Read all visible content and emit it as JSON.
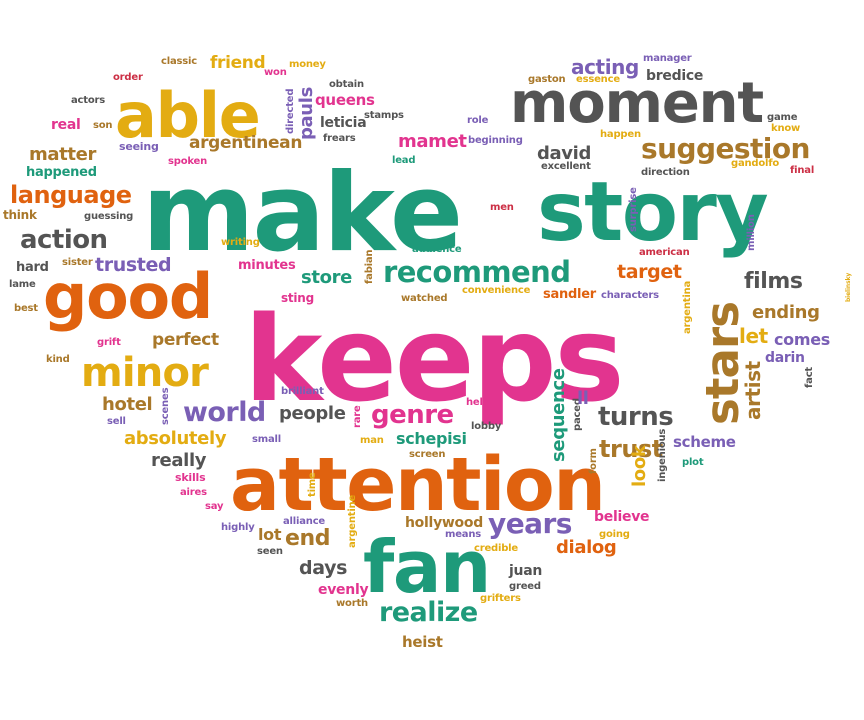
{
  "palette": {
    "green": "#1e9a7a",
    "pink": "#e2348f",
    "orange": "#e0620f",
    "gold": "#e3ac12",
    "purple": "#7a5fb5",
    "gray": "#545454",
    "brown": "#a9782a",
    "red": "#cc2f45"
  },
  "words": [
    {
      "text": "make",
      "color": "green"
    },
    {
      "text": "keeps",
      "color": "pink"
    },
    {
      "text": "story",
      "color": "green"
    },
    {
      "text": "attention",
      "color": "orange"
    },
    {
      "text": "moment",
      "color": "gray"
    },
    {
      "text": "able",
      "color": "gold"
    },
    {
      "text": "good",
      "color": "orange"
    },
    {
      "text": "stars",
      "color": "brown"
    },
    {
      "text": "fan",
      "color": "green"
    },
    {
      "text": "minor",
      "color": "gold"
    },
    {
      "text": "recommend",
      "color": "green"
    },
    {
      "text": "suggestion",
      "color": "brown"
    },
    {
      "text": "language",
      "color": "orange"
    },
    {
      "text": "action",
      "color": "gray"
    },
    {
      "text": "world",
      "color": "purple"
    },
    {
      "text": "genre",
      "color": "pink"
    },
    {
      "text": "years",
      "color": "purple"
    },
    {
      "text": "realize",
      "color": "green"
    },
    {
      "text": "turns",
      "color": "gray"
    },
    {
      "text": "trust",
      "color": "brown"
    },
    {
      "text": "films",
      "color": "gray"
    },
    {
      "text": "ending",
      "color": "brown"
    },
    {
      "text": "artist",
      "color": "brown"
    },
    {
      "text": "acting",
      "color": "purple"
    },
    {
      "text": "mamet",
      "color": "pink"
    },
    {
      "text": "david",
      "color": "gray"
    },
    {
      "text": "matter",
      "color": "brown"
    },
    {
      "text": "argentinean",
      "color": "brown"
    },
    {
      "text": "trusted",
      "color": "purple"
    },
    {
      "text": "store",
      "color": "green"
    },
    {
      "text": "target",
      "color": "orange"
    },
    {
      "text": "perfect",
      "color": "brown"
    },
    {
      "text": "hotel",
      "color": "brown"
    },
    {
      "text": "absolutely",
      "color": "gold"
    },
    {
      "text": "people",
      "color": "gray"
    },
    {
      "text": "really",
      "color": "gray"
    },
    {
      "text": "end",
      "color": "brown"
    },
    {
      "text": "dialog",
      "color": "orange"
    },
    {
      "text": "days",
      "color": "gray"
    },
    {
      "text": "schepisi",
      "color": "green"
    },
    {
      "text": "sequence",
      "color": "green"
    },
    {
      "text": "look",
      "color": "gold"
    },
    {
      "text": "let",
      "color": "gold"
    },
    {
      "text": "comes",
      "color": "purple"
    },
    {
      "text": "darin",
      "color": "purple"
    },
    {
      "text": "scheme",
      "color": "purple"
    },
    {
      "text": "bielinsky",
      "color": "gold"
    },
    {
      "text": "queens",
      "color": "pink"
    },
    {
      "text": "pauls",
      "color": "purple"
    },
    {
      "text": "friend",
      "color": "gold"
    },
    {
      "text": "leticia",
      "color": "gray"
    },
    {
      "text": "heist",
      "color": "brown"
    },
    {
      "text": "juan",
      "color": "gray"
    },
    {
      "text": "evenly",
      "color": "pink"
    },
    {
      "text": "hollywood",
      "color": "brown"
    },
    {
      "text": "believe",
      "color": "pink"
    },
    {
      "text": "lot",
      "color": "brown"
    },
    {
      "text": "sting",
      "color": "pink"
    },
    {
      "text": "minutes",
      "color": "pink"
    },
    {
      "text": "sandler",
      "color": "orange"
    },
    {
      "text": "hard",
      "color": "gray"
    },
    {
      "text": "sister",
      "color": "brown"
    },
    {
      "text": "classic",
      "color": "brown"
    },
    {
      "text": "order",
      "color": "red"
    },
    {
      "text": "actors",
      "color": "gray"
    },
    {
      "text": "real",
      "color": "pink"
    },
    {
      "text": "son",
      "color": "brown"
    },
    {
      "text": "seeing",
      "color": "purple"
    },
    {
      "text": "happened",
      "color": "green"
    },
    {
      "text": "think",
      "color": "brown"
    },
    {
      "text": "guessing",
      "color": "gray"
    },
    {
      "text": "spoken",
      "color": "pink"
    },
    {
      "text": "writing",
      "color": "gold"
    },
    {
      "text": "lame",
      "color": "gray"
    },
    {
      "text": "best",
      "color": "brown"
    },
    {
      "text": "grift",
      "color": "pink"
    },
    {
      "text": "kind",
      "color": "brown"
    },
    {
      "text": "sell",
      "color": "purple"
    },
    {
      "text": "scenes",
      "color": "purple"
    },
    {
      "text": "small",
      "color": "purple"
    },
    {
      "text": "skills",
      "color": "pink"
    },
    {
      "text": "aires",
      "color": "pink"
    },
    {
      "text": "say",
      "color": "pink"
    },
    {
      "text": "highly",
      "color": "purple"
    },
    {
      "text": "seen",
      "color": "gray"
    },
    {
      "text": "time",
      "color": "gold"
    },
    {
      "text": "alliance",
      "color": "purple"
    },
    {
      "text": "argentine",
      "color": "gold"
    },
    {
      "text": "means",
      "color": "purple"
    },
    {
      "text": "credible",
      "color": "gold"
    },
    {
      "text": "worth",
      "color": "brown"
    },
    {
      "text": "greed",
      "color": "gray"
    },
    {
      "text": "grifters",
      "color": "gold"
    },
    {
      "text": "going",
      "color": "gold"
    },
    {
      "text": "ingenious",
      "color": "gray"
    },
    {
      "text": "plot",
      "color": "green"
    },
    {
      "text": "form",
      "color": "brown"
    },
    {
      "text": "paced",
      "color": "gray"
    },
    {
      "text": "ll",
      "color": "purple"
    },
    {
      "text": "help",
      "color": "pink"
    },
    {
      "text": "lobby",
      "color": "gray"
    },
    {
      "text": "screen",
      "color": "brown"
    },
    {
      "text": "rare",
      "color": "pink"
    },
    {
      "text": "man",
      "color": "gold"
    },
    {
      "text": "brilliant",
      "color": "purple"
    },
    {
      "text": "watched",
      "color": "brown"
    },
    {
      "text": "convenience",
      "color": "gold"
    },
    {
      "text": "fabian",
      "color": "brown"
    },
    {
      "text": "audience",
      "color": "green"
    },
    {
      "text": "men",
      "color": "red"
    },
    {
      "text": "lead",
      "color": "green"
    },
    {
      "text": "excellent",
      "color": "gray"
    },
    {
      "text": "direction",
      "color": "gray"
    },
    {
      "text": "gandolfo",
      "color": "gold"
    },
    {
      "text": "final",
      "color": "red"
    },
    {
      "text": "surprise",
      "color": "purple"
    },
    {
      "text": "american",
      "color": "red"
    },
    {
      "text": "million",
      "color": "purple"
    },
    {
      "text": "argentina",
      "color": "gold"
    },
    {
      "text": "characters",
      "color": "purple"
    },
    {
      "text": "fact",
      "color": "gray"
    },
    {
      "text": "money",
      "color": "gold"
    },
    {
      "text": "won",
      "color": "pink"
    },
    {
      "text": "obtain",
      "color": "gray"
    },
    {
      "text": "directed",
      "color": "purple"
    },
    {
      "text": "stamps",
      "color": "gray"
    },
    {
      "text": "frears",
      "color": "gray"
    },
    {
      "text": "role",
      "color": "purple"
    },
    {
      "text": "beginning",
      "color": "purple"
    },
    {
      "text": "gaston",
      "color": "brown"
    },
    {
      "text": "essence",
      "color": "gold"
    },
    {
      "text": "manager",
      "color": "purple"
    },
    {
      "text": "bredice",
      "color": "gray"
    },
    {
      "text": "game",
      "color": "gray"
    },
    {
      "text": "know",
      "color": "gold"
    },
    {
      "text": "happen",
      "color": "gold"
    }
  ]
}
